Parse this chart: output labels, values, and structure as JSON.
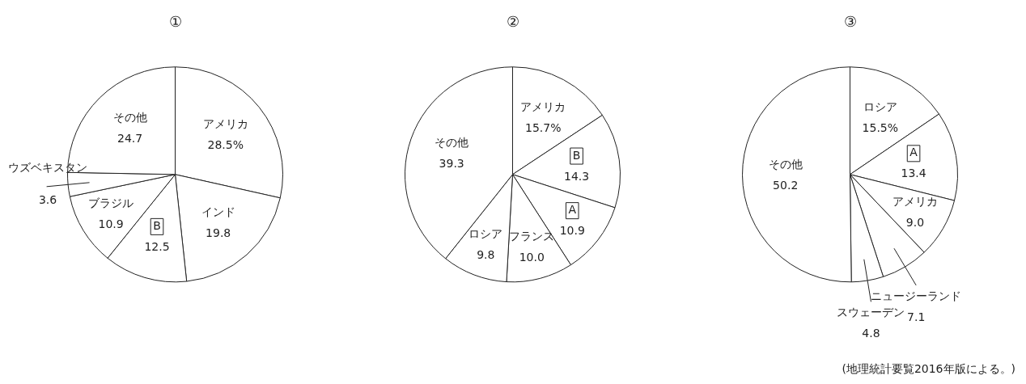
{
  "chart_data": [
    {
      "type": "pie",
      "title": "①",
      "categories": [
        "アメリカ",
        "インド",
        "B",
        "ブラジル",
        "ウズベキスタン",
        "その他"
      ],
      "values": [
        28.5,
        19.8,
        12.5,
        10.9,
        3.6,
        24.7
      ],
      "value_labels": [
        "28.5%",
        "19.8",
        "12.5",
        "10.9",
        "3.6",
        "24.7"
      ],
      "colors": [
        "#ffffff",
        "#ffffff",
        "#ffffff",
        "#ffffff",
        "#ffffff",
        "#ffffff"
      ],
      "legend": false
    },
    {
      "type": "pie",
      "title": "②",
      "categories": [
        "アメリカ",
        "B",
        "A",
        "フランス",
        "ロシア",
        "その他"
      ],
      "values": [
        15.7,
        14.3,
        10.9,
        10.0,
        9.8,
        39.3
      ],
      "value_labels": [
        "15.7%",
        "14.3",
        "10.9",
        "10.0",
        "9.8",
        "39.3"
      ],
      "colors": [
        "#ffffff",
        "#ffffff",
        "#ffffff",
        "#ffffff",
        "#ffffff",
        "#ffffff"
      ],
      "legend": false
    },
    {
      "type": "pie",
      "title": "③",
      "categories": [
        "ロシア",
        "A",
        "アメリカ",
        "ニュージーランド",
        "スウェーデン",
        "その他"
      ],
      "values": [
        15.5,
        13.4,
        9.0,
        7.1,
        4.8,
        50.2
      ],
      "value_labels": [
        "15.5%",
        "13.4",
        "9.0",
        "7.1",
        "4.8",
        "50.2"
      ],
      "colors": [
        "#ffffff",
        "#ffffff",
        "#ffffff",
        "#ffffff",
        "#ffffff",
        "#ffffff"
      ],
      "legend": false,
      "annotations": [
        "(地理統計要覧2016年版による。)"
      ]
    }
  ]
}
